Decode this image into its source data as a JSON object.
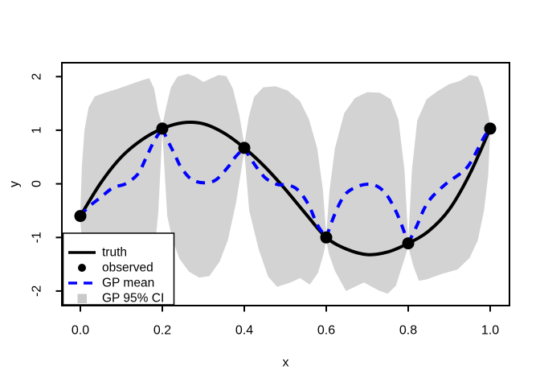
{
  "figure": {
    "background": "#FFFFFF",
    "description": "R base plot of Gaussian process regression: truth curve, observed points, GP posterior mean and 95% credible interval"
  },
  "chart_data": {
    "type": "line",
    "title": "",
    "xlabel": "x",
    "ylabel": "y",
    "xlim": [
      -0.045,
      1.047
    ],
    "ylim": [
      -2.27,
      2.26
    ],
    "grid": false,
    "x_ticks": [
      0.0,
      0.2,
      0.4,
      0.6,
      0.8,
      1.0
    ],
    "x_tick_labels": [
      "0.0",
      "0.2",
      "0.4",
      "0.6",
      "0.8",
      "1.0"
    ],
    "y_ticks": [
      -2,
      -1,
      0,
      1,
      2
    ],
    "y_tick_labels": [
      "-2",
      "-1",
      "0",
      "1",
      "2"
    ],
    "colors": {
      "truth": "#000000",
      "observed": "#000000",
      "gp_mean": "#0000FF",
      "ci_fill": "#D3D3D3"
    },
    "legend": {
      "position": "bottom-left",
      "entries": [
        {
          "label": "truth",
          "style": "solid-black-line"
        },
        {
          "label": "observed",
          "style": "filled-black-point"
        },
        {
          "label": "GP mean",
          "style": "dashed-blue-line"
        },
        {
          "label": "GP 95% CI",
          "style": "gray-filled-square"
        }
      ]
    },
    "series": {
      "observed": {
        "name": "observed",
        "x": [
          0.0,
          0.2,
          0.4,
          0.6,
          0.8,
          1.0
        ],
        "y": [
          -0.6,
          1.03,
          0.67,
          -1.0,
          -1.11,
          1.03
        ]
      },
      "truth": {
        "name": "truth",
        "points": [
          [
            0.0,
            -0.6
          ],
          [
            0.05,
            0.02
          ],
          [
            0.1,
            0.5
          ],
          [
            0.15,
            0.82
          ],
          [
            0.2,
            1.03
          ],
          [
            0.25,
            1.14
          ],
          [
            0.3,
            1.12
          ],
          [
            0.35,
            0.95
          ],
          [
            0.4,
            0.67
          ],
          [
            0.45,
            0.32
          ],
          [
            0.5,
            -0.1
          ],
          [
            0.55,
            -0.56
          ],
          [
            0.6,
            -1.0
          ],
          [
            0.65,
            -1.22
          ],
          [
            0.7,
            -1.32
          ],
          [
            0.75,
            -1.27
          ],
          [
            0.8,
            -1.11
          ],
          [
            0.85,
            -0.88
          ],
          [
            0.9,
            -0.48
          ],
          [
            0.95,
            0.18
          ],
          [
            1.0,
            1.03
          ]
        ]
      },
      "gp_mean": {
        "name": "GP mean",
        "segments": [
          [
            [
              0.0,
              -0.6
            ],
            [
              0.02,
              -0.43
            ],
            [
              0.05,
              -0.25
            ],
            [
              0.08,
              -0.07
            ],
            [
              0.11,
              0.0
            ],
            [
              0.14,
              0.18
            ],
            [
              0.16,
              0.48
            ],
            [
              0.18,
              0.8
            ],
            [
              0.2,
              1.03
            ]
          ],
          [
            [
              0.2,
              1.03
            ],
            [
              0.215,
              0.78
            ],
            [
              0.23,
              0.55
            ],
            [
              0.245,
              0.32
            ],
            [
              0.27,
              0.09
            ],
            [
              0.3,
              0.02
            ],
            [
              0.33,
              0.07
            ],
            [
              0.36,
              0.31
            ],
            [
              0.378,
              0.5
            ],
            [
              0.4,
              0.67
            ]
          ],
          [
            [
              0.4,
              0.67
            ],
            [
              0.42,
              0.42
            ],
            [
              0.45,
              0.12
            ],
            [
              0.48,
              -0.01
            ],
            [
              0.505,
              -0.02
            ],
            [
              0.53,
              -0.11
            ],
            [
              0.556,
              -0.38
            ],
            [
              0.578,
              -0.76
            ],
            [
              0.6,
              -1.0
            ]
          ],
          [
            [
              0.6,
              -1.0
            ],
            [
              0.62,
              -0.58
            ],
            [
              0.643,
              -0.23
            ],
            [
              0.667,
              -0.08
            ],
            [
              0.695,
              -0.01
            ],
            [
              0.72,
              -0.03
            ],
            [
              0.745,
              -0.18
            ],
            [
              0.768,
              -0.48
            ],
            [
              0.785,
              -0.79
            ],
            [
              0.8,
              -1.11
            ]
          ],
          [
            [
              0.8,
              -1.11
            ],
            [
              0.82,
              -0.8
            ],
            [
              0.84,
              -0.45
            ],
            [
              0.86,
              -0.23
            ],
            [
              0.895,
              0.02
            ],
            [
              0.925,
              0.18
            ],
            [
              0.947,
              0.34
            ],
            [
              0.97,
              0.65
            ],
            [
              0.985,
              0.87
            ],
            [
              1.0,
              1.03
            ]
          ]
        ]
      },
      "ci": {
        "name": "GP 95% CI",
        "upper": [
          [
            0.0,
            -0.5
          ],
          [
            0.004,
            0.35
          ],
          [
            0.01,
            1.0
          ],
          [
            0.02,
            1.42
          ],
          [
            0.035,
            1.63
          ],
          [
            0.06,
            1.7
          ],
          [
            0.09,
            1.77
          ],
          [
            0.12,
            1.85
          ],
          [
            0.15,
            1.93
          ],
          [
            0.168,
            1.97
          ],
          [
            0.18,
            1.78
          ],
          [
            0.19,
            1.35
          ],
          [
            0.2,
            1.09
          ],
          [
            0.21,
            1.45
          ],
          [
            0.221,
            1.8
          ],
          [
            0.237,
            2.0
          ],
          [
            0.262,
            2.05
          ],
          [
            0.28,
            2.0
          ],
          [
            0.3,
            1.9
          ],
          [
            0.32,
            1.97
          ],
          [
            0.337,
            2.03
          ],
          [
            0.356,
            2.01
          ],
          [
            0.372,
            1.78
          ],
          [
            0.388,
            1.28
          ],
          [
            0.4,
            0.73
          ],
          [
            0.411,
            1.25
          ],
          [
            0.424,
            1.62
          ],
          [
            0.446,
            1.8
          ],
          [
            0.476,
            1.82
          ],
          [
            0.506,
            1.74
          ],
          [
            0.536,
            1.54
          ],
          [
            0.558,
            1.2
          ],
          [
            0.578,
            0.66
          ],
          [
            0.592,
            -0.12
          ],
          [
            0.6,
            -0.94
          ],
          [
            0.608,
            -0.12
          ],
          [
            0.621,
            0.66
          ],
          [
            0.644,
            1.32
          ],
          [
            0.67,
            1.6
          ],
          [
            0.7,
            1.71
          ],
          [
            0.731,
            1.7
          ],
          [
            0.757,
            1.58
          ],
          [
            0.776,
            1.2
          ],
          [
            0.791,
            0.25
          ],
          [
            0.8,
            -1.05
          ],
          [
            0.809,
            0.25
          ],
          [
            0.822,
            1.18
          ],
          [
            0.845,
            1.58
          ],
          [
            0.87,
            1.72
          ],
          [
            0.9,
            1.86
          ],
          [
            0.926,
            1.92
          ],
          [
            0.95,
            2.03
          ],
          [
            0.97,
            2.0
          ],
          [
            0.982,
            1.78
          ],
          [
            0.992,
            1.44
          ],
          [
            1.0,
            1.1
          ]
        ],
        "lower": [
          [
            0.0,
            -0.7
          ],
          [
            0.005,
            -1.18
          ],
          [
            0.012,
            -1.52
          ],
          [
            0.025,
            -1.72
          ],
          [
            0.05,
            -1.84
          ],
          [
            0.09,
            -1.92
          ],
          [
            0.13,
            -1.95
          ],
          [
            0.16,
            -1.88
          ],
          [
            0.178,
            -1.48
          ],
          [
            0.19,
            -0.55
          ],
          [
            0.2,
            0.97
          ],
          [
            0.212,
            -0.6
          ],
          [
            0.225,
            -1.05
          ],
          [
            0.242,
            -1.4
          ],
          [
            0.265,
            -1.64
          ],
          [
            0.29,
            -1.75
          ],
          [
            0.315,
            -1.72
          ],
          [
            0.34,
            -1.45
          ],
          [
            0.36,
            -1.05
          ],
          [
            0.38,
            -0.35
          ],
          [
            0.4,
            0.61
          ],
          [
            0.412,
            -0.5
          ],
          [
            0.435,
            -1.22
          ],
          [
            0.458,
            -1.73
          ],
          [
            0.48,
            -1.92
          ],
          [
            0.51,
            -1.85
          ],
          [
            0.536,
            -1.76
          ],
          [
            0.56,
            -1.88
          ],
          [
            0.58,
            -1.66
          ],
          [
            0.593,
            -1.32
          ],
          [
            0.6,
            -1.06
          ],
          [
            0.607,
            -1.32
          ],
          [
            0.621,
            -1.62
          ],
          [
            0.648,
            -2.0
          ],
          [
            0.692,
            -1.84
          ],
          [
            0.728,
            -1.99
          ],
          [
            0.75,
            -2.05
          ],
          [
            0.77,
            -1.9
          ],
          [
            0.79,
            -1.42
          ],
          [
            0.8,
            -1.17
          ],
          [
            0.812,
            -1.52
          ],
          [
            0.826,
            -1.81
          ],
          [
            0.846,
            -1.78
          ],
          [
            0.882,
            -1.68
          ],
          [
            0.92,
            -1.6
          ],
          [
            0.95,
            -1.38
          ],
          [
            0.97,
            -1.05
          ],
          [
            0.985,
            -0.5
          ],
          [
            0.995,
            0.15
          ],
          [
            1.0,
            0.96
          ]
        ]
      }
    }
  }
}
